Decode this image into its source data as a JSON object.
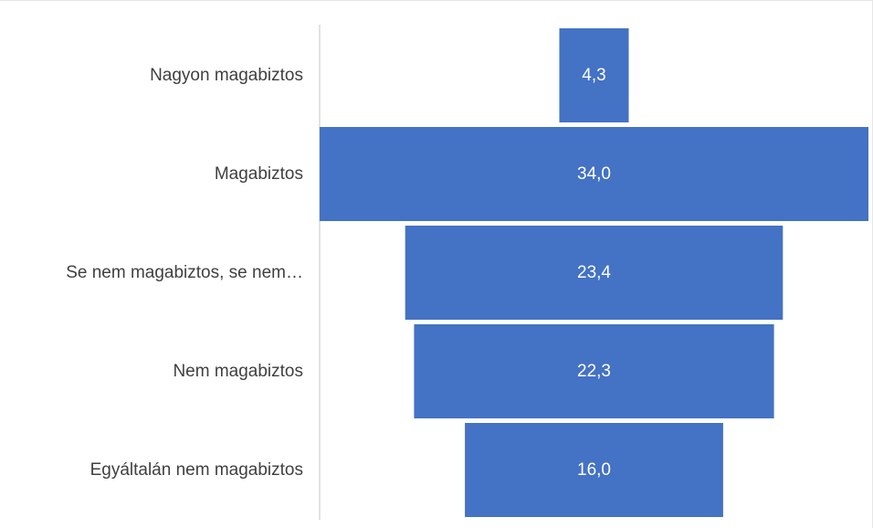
{
  "chart_data": {
    "type": "bar",
    "orientation": "horizontal",
    "layout": "funnel",
    "title": "",
    "xlabel": "",
    "ylabel": "",
    "categories": [
      "Nagyon magabiztos",
      "Magabiztos",
      "Se nem magabiztos, se nem…",
      "Nem magabiztos",
      "Egyáltalán nem magabiztos"
    ],
    "values": [
      4.3,
      34.0,
      23.4,
      22.3,
      16.0
    ],
    "value_labels": [
      "4,3",
      "34,0",
      "23,4",
      "22,3",
      "16,0"
    ],
    "xlim": [
      0,
      34.0
    ],
    "grid": false,
    "legend": "none",
    "colors": {
      "bar": "#4472C4",
      "value_label": "#FFFFFF",
      "category_label": "#404040",
      "axis_line": "#D9D9D9"
    }
  }
}
